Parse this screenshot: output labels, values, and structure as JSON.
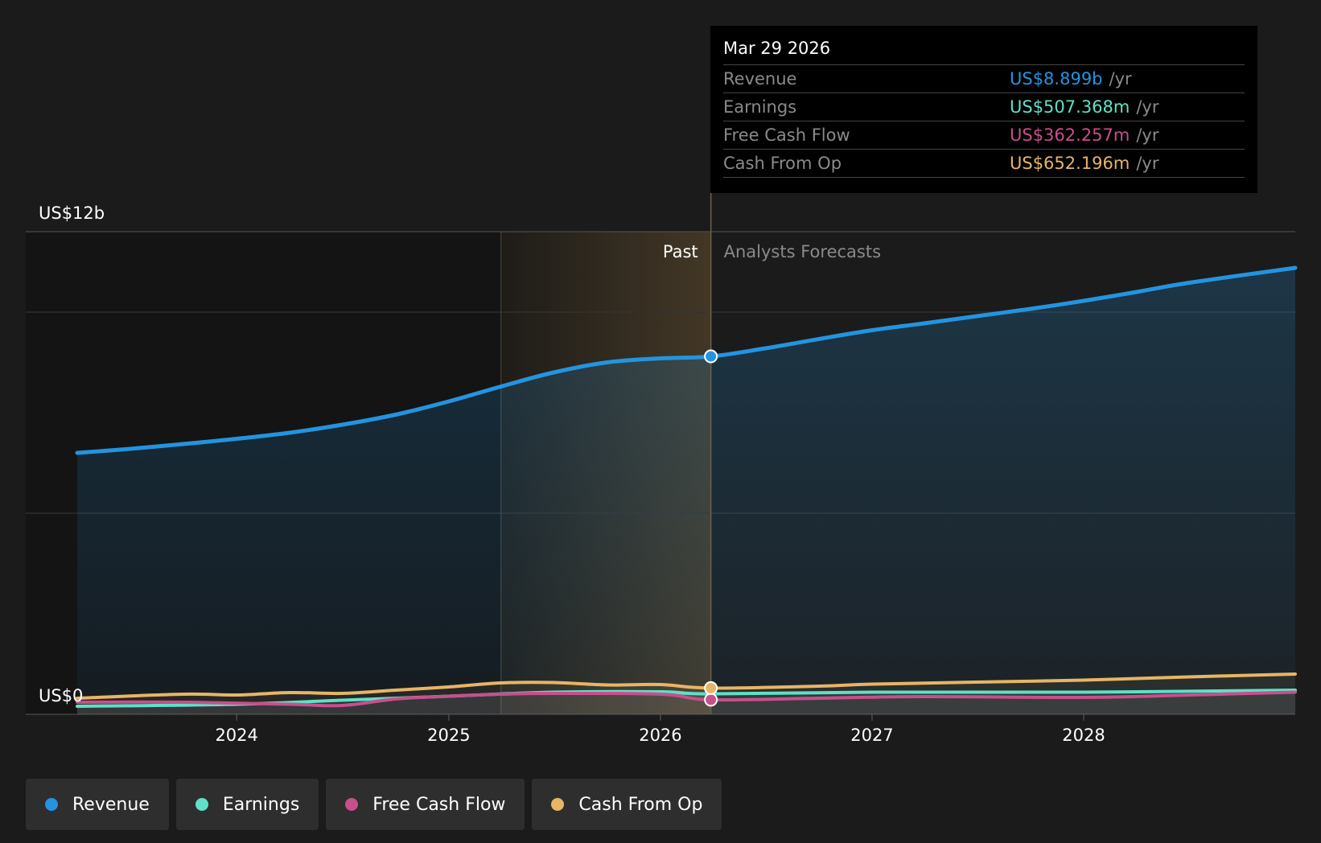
{
  "chart_data": {
    "type": "area",
    "y_axis": {
      "top_label": "US$12b",
      "bottom_label": "US$0",
      "ylim": [
        0,
        12
      ]
    },
    "xlim": [
      "2023-04-01",
      "2028-12-31"
    ],
    "x_ticks": [
      "2024",
      "2025",
      "2026",
      "2027",
      "2028"
    ],
    "x_tick_dates": [
      "2024-01-01",
      "2025-01-01",
      "2026-01-01",
      "2027-01-01",
      "2028-01-01"
    ],
    "grid": true,
    "past_label": "Past",
    "forecast_label": "Analysts Forecasts",
    "past_band": [
      "2025-04-01",
      "2026-03-29"
    ],
    "divider_date": "2026-03-29",
    "series": [
      {
        "name": "Revenue",
        "color": "#2394e0",
        "unit": "billions",
        "points": [
          [
            "2023-04-01",
            6.5
          ],
          [
            "2023-07-01",
            6.6
          ],
          [
            "2023-10-01",
            6.72
          ],
          [
            "2024-01-01",
            6.85
          ],
          [
            "2024-04-01",
            7.0
          ],
          [
            "2024-07-01",
            7.2
          ],
          [
            "2024-10-01",
            7.45
          ],
          [
            "2025-01-01",
            7.78
          ],
          [
            "2025-04-01",
            8.15
          ],
          [
            "2025-07-01",
            8.5
          ],
          [
            "2025-10-01",
            8.75
          ],
          [
            "2026-01-01",
            8.85
          ],
          [
            "2026-03-29",
            8.899
          ],
          [
            "2026-07-01",
            9.1
          ],
          [
            "2026-10-01",
            9.33
          ],
          [
            "2027-01-01",
            9.55
          ],
          [
            "2027-04-01",
            9.72
          ],
          [
            "2027-07-01",
            9.9
          ],
          [
            "2027-10-01",
            10.08
          ],
          [
            "2028-01-01",
            10.28
          ],
          [
            "2028-04-01",
            10.5
          ],
          [
            "2028-07-01",
            10.73
          ],
          [
            "2028-12-31",
            11.1
          ]
        ]
      },
      {
        "name": "Earnings",
        "color": "#5fe0c8",
        "unit": "billions",
        "points": [
          [
            "2023-04-01",
            0.2
          ],
          [
            "2024-01-01",
            0.25
          ],
          [
            "2024-07-01",
            0.35
          ],
          [
            "2025-01-01",
            0.45
          ],
          [
            "2025-07-01",
            0.55
          ],
          [
            "2026-01-01",
            0.56
          ],
          [
            "2026-03-29",
            0.507
          ],
          [
            "2027-01-01",
            0.55
          ],
          [
            "2028-01-01",
            0.55
          ],
          [
            "2028-12-31",
            0.6
          ]
        ]
      },
      {
        "name": "Free Cash Flow",
        "color": "#c84f8c",
        "unit": "billions",
        "points": [
          [
            "2023-04-01",
            0.3
          ],
          [
            "2023-10-01",
            0.3
          ],
          [
            "2024-04-01",
            0.25
          ],
          [
            "2024-07-01",
            0.22
          ],
          [
            "2024-10-01",
            0.38
          ],
          [
            "2025-01-01",
            0.45
          ],
          [
            "2025-04-01",
            0.5
          ],
          [
            "2025-07-01",
            0.52
          ],
          [
            "2026-01-01",
            0.5
          ],
          [
            "2026-03-29",
            0.362
          ],
          [
            "2026-10-01",
            0.4
          ],
          [
            "2027-04-01",
            0.44
          ],
          [
            "2028-01-01",
            0.42
          ],
          [
            "2028-07-01",
            0.48
          ],
          [
            "2028-12-31",
            0.55
          ]
        ]
      },
      {
        "name": "Cash From Op",
        "color": "#e8b566",
        "unit": "billions",
        "points": [
          [
            "2023-04-01",
            0.4
          ],
          [
            "2023-10-01",
            0.5
          ],
          [
            "2024-01-01",
            0.48
          ],
          [
            "2024-04-01",
            0.54
          ],
          [
            "2024-07-01",
            0.52
          ],
          [
            "2024-10-01",
            0.6
          ],
          [
            "2025-01-01",
            0.68
          ],
          [
            "2025-04-01",
            0.78
          ],
          [
            "2025-07-01",
            0.79
          ],
          [
            "2025-10-01",
            0.73
          ],
          [
            "2026-01-01",
            0.74
          ],
          [
            "2026-03-29",
            0.652
          ],
          [
            "2026-10-01",
            0.7
          ],
          [
            "2027-01-01",
            0.75
          ],
          [
            "2027-07-01",
            0.8
          ],
          [
            "2028-01-01",
            0.85
          ],
          [
            "2028-07-01",
            0.93
          ],
          [
            "2028-12-31",
            1.0
          ]
        ]
      }
    ]
  },
  "tooltip": {
    "date": "Mar 29 2026",
    "rows": [
      {
        "label": "Revenue",
        "value": "US$8.899b",
        "unit": "/yr",
        "color": "#2394e0"
      },
      {
        "label": "Earnings",
        "value": "US$507.368m",
        "unit": "/yr",
        "color": "#5fe0c8"
      },
      {
        "label": "Free Cash Flow",
        "value": "US$362.257m",
        "unit": "/yr",
        "color": "#c84f8c"
      },
      {
        "label": "Cash From Op",
        "value": "US$652.196m",
        "unit": "/yr",
        "color": "#e8b566"
      }
    ]
  },
  "legend": [
    {
      "label": "Revenue",
      "color": "#2394e0"
    },
    {
      "label": "Earnings",
      "color": "#5fe0c8"
    },
    {
      "label": "Free Cash Flow",
      "color": "#c84f8c"
    },
    {
      "label": "Cash From Op",
      "color": "#e8b566"
    }
  ]
}
